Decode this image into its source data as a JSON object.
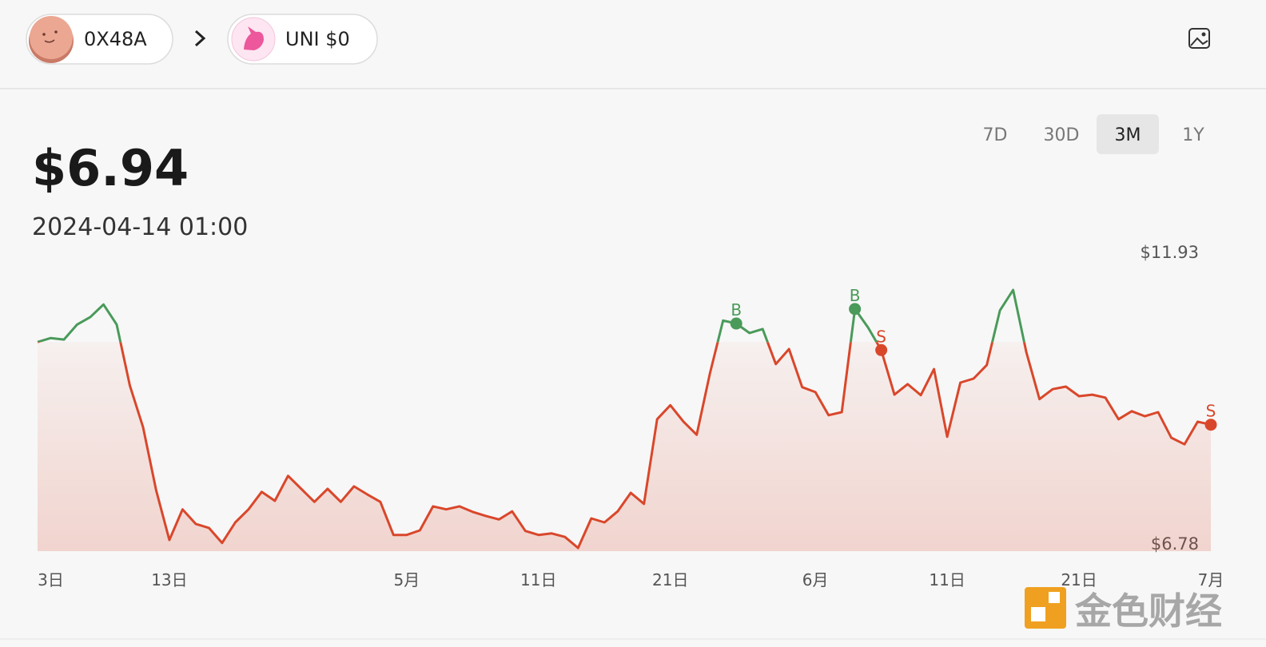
{
  "header": {
    "wallet": "0X48A",
    "token": "UNI $0"
  },
  "price": "$6.94",
  "date": "2024-04-14 01:00",
  "tabs": [
    "7D",
    "30D",
    "3M",
    "1Y"
  ],
  "active_tab": "3M",
  "watermark": "金色财经",
  "chart_data": {
    "type": "line",
    "categories": [
      null,
      "3日",
      null,
      null,
      null,
      null,
      null,
      null,
      null,
      null,
      "13日",
      null,
      null,
      null,
      null,
      null,
      null,
      null,
      null,
      null,
      null,
      null,
      null,
      null,
      null,
      null,
      null,
      null,
      "5月",
      null,
      null,
      null,
      null,
      null,
      null,
      null,
      null,
      null,
      "11日",
      null,
      null,
      null,
      null,
      null,
      null,
      null,
      null,
      null,
      "21日",
      null,
      null,
      null,
      null,
      null,
      null,
      null,
      null,
      null,
      null,
      "6月",
      null,
      null,
      null,
      null,
      null,
      null,
      null,
      null,
      null,
      "11日",
      null,
      null,
      null,
      null,
      null,
      null,
      null,
      null,
      null,
      "21日",
      null,
      null,
      null,
      null,
      null,
      null,
      null,
      null,
      null,
      "7月"
    ],
    "values": [
      10.89,
      10.97,
      10.94,
      11.24,
      11.39,
      11.64,
      11.24,
      10.02,
      9.19,
      7.93,
      6.94,
      7.55,
      7.26,
      7.18,
      6.88,
      7.29,
      7.55,
      7.9,
      7.72,
      8.22,
      7.96,
      7.7,
      7.96,
      7.7,
      8.01,
      7.85,
      7.7,
      7.04,
      7.04,
      7.13,
      7.61,
      7.55,
      7.61,
      7.5,
      7.42,
      7.35,
      7.51,
      7.12,
      7.04,
      7.07,
      7.0,
      6.78,
      7.37,
      7.29,
      7.51,
      7.88,
      7.66,
      9.35,
      9.63,
      9.3,
      9.04,
      10.26,
      11.32,
      11.26,
      11.07,
      11.15,
      10.45,
      10.75,
      9.99,
      9.89,
      9.43,
      9.49,
      11.55,
      11.18,
      10.73,
      9.84,
      10.05,
      9.83,
      10.35,
      9.0,
      10.08,
      10.16,
      10.43,
      11.52,
      11.93,
      10.69,
      9.75,
      9.95,
      10.0,
      9.81,
      9.84,
      9.78,
      9.35,
      9.51,
      9.41,
      9.49,
      8.98,
      8.85,
      9.3,
      9.24
    ],
    "up_color": "#4a9a5a",
    "down_color": "#d9472b",
    "ylim": [
      6.78,
      11.93
    ],
    "yticks": [
      {
        "value": 6.78,
        "label": "$6.78"
      },
      {
        "value": 11.93,
        "label": "$11.93"
      }
    ],
    "grid": false,
    "markers": [
      {
        "label": "B",
        "color": "#4a9a5a",
        "values": [
          null,
          null,
          null,
          null,
          null,
          null,
          null,
          null,
          null,
          null,
          null,
          null,
          null,
          null,
          null,
          null,
          null,
          null,
          null,
          null,
          null,
          null,
          null,
          null,
          null,
          null,
          null,
          null,
          null,
          null,
          null,
          null,
          null,
          null,
          null,
          null,
          null,
          null,
          null,
          null,
          null,
          null,
          null,
          null,
          null,
          null,
          null,
          null,
          null,
          null,
          null,
          null,
          null,
          11.26,
          null,
          null,
          null,
          null,
          null,
          null,
          null,
          null,
          11.55,
          null,
          null,
          null,
          null,
          null,
          null,
          null,
          null,
          null,
          null,
          null,
          null,
          null,
          null,
          null,
          null,
          null,
          null,
          null,
          null,
          null,
          null,
          null,
          null,
          null,
          null,
          null
        ]
      },
      {
        "label": "S",
        "color": "#d9472b",
        "values": [
          null,
          null,
          null,
          null,
          null,
          null,
          null,
          null,
          null,
          null,
          null,
          null,
          null,
          null,
          null,
          null,
          null,
          null,
          null,
          null,
          null,
          null,
          null,
          null,
          null,
          null,
          null,
          null,
          null,
          null,
          null,
          null,
          null,
          null,
          null,
          null,
          null,
          null,
          null,
          null,
          null,
          null,
          null,
          null,
          null,
          null,
          null,
          null,
          null,
          null,
          null,
          null,
          null,
          null,
          null,
          null,
          null,
          null,
          null,
          null,
          null,
          null,
          null,
          null,
          10.73,
          null,
          null,
          null,
          null,
          null,
          null,
          null,
          null,
          null,
          null,
          null,
          null,
          null,
          null,
          null,
          null,
          null,
          null,
          null,
          null,
          null,
          null,
          null,
          null,
          9.24
        ]
      }
    ]
  }
}
